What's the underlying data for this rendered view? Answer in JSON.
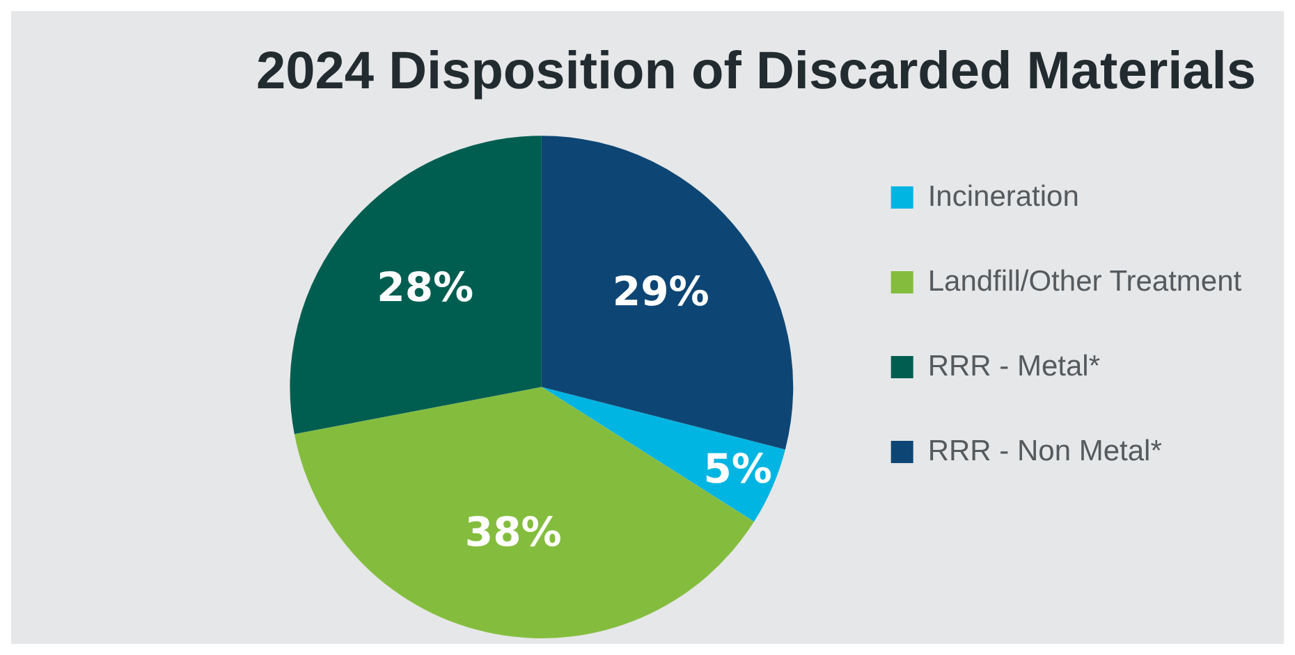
{
  "chart_data": {
    "type": "pie",
    "title": "2024 Disposition of Discarded Materials",
    "categories": [
      "Incineration",
      "Landfill/Other Treatment",
      "RRR - Metal*",
      "RRR - Non Metal*"
    ],
    "values": [
      5,
      38,
      28,
      29
    ],
    "colors": [
      "#00b5e2",
      "#84bd3e",
      "#005e50",
      "#0d4674"
    ],
    "value_labels": [
      "5%",
      "38%",
      "28%",
      "29%"
    ],
    "legend": "right"
  }
}
